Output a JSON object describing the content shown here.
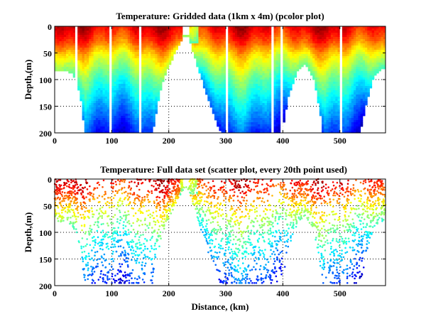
{
  "chart_data": [
    {
      "type": "heatmap",
      "title": "Temperature: Gridded data (1km x 4m) (pcolor plot)",
      "xlabel": "",
      "ylabel": "Depth,(m)",
      "xlim": [
        0,
        580
      ],
      "ylim": [
        200,
        0
      ],
      "xticks": [
        "0",
        "100",
        "200",
        "300",
        "400",
        "500"
      ],
      "yticks": [
        "0",
        "50",
        "100",
        "150",
        "200"
      ],
      "grid": true,
      "colormap": "jet",
      "bottom_profile": {
        "distance_km": [
          0,
          30,
          40,
          48,
          52,
          172,
          185,
          195,
          215,
          228,
          235,
          252,
          270,
          288,
          292,
          398,
          410,
          425,
          440,
          455,
          465,
          470,
          535,
          545,
          560,
          572,
          580
        ],
        "max_depth_m": [
          80,
          85,
          110,
          150,
          200,
          200,
          120,
          85,
          40,
          15,
          20,
          80,
          140,
          190,
          200,
          200,
          130,
          85,
          70,
          100,
          160,
          200,
          200,
          150,
          90,
          80,
          80
        ]
      },
      "relative_temperature_by_depth": {
        "depth_m": [
          0,
          25,
          50,
          100,
          150,
          200
        ],
        "relative_temp": [
          0.9,
          0.8,
          0.65,
          0.45,
          0.3,
          0.15
        ]
      }
    },
    {
      "type": "scatter",
      "title": "Temperature: Full data set (scatter plot, every 20th point used)",
      "xlabel": "Distance, (km)",
      "ylabel": "Depth,(m)",
      "xlim": [
        0,
        580
      ],
      "ylim": [
        200,
        0
      ],
      "xticks": [
        "0",
        "100",
        "200",
        "300",
        "400",
        "500"
      ],
      "yticks": [
        "0",
        "50",
        "100",
        "150",
        "200"
      ],
      "grid": true,
      "colormap": "jet",
      "sampling": "every 20th point"
    }
  ]
}
